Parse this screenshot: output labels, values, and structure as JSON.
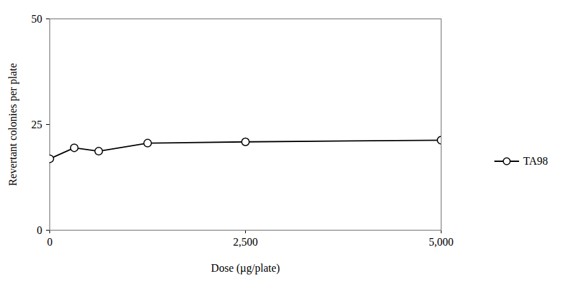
{
  "chart_data": {
    "type": "line",
    "xlabel": "Dose (µg/plate)",
    "ylabel": "Revertant colonies per plate",
    "x": [
      0,
      312.5,
      625,
      1250,
      2500,
      5000
    ],
    "series": [
      {
        "name": "TA98",
        "color": "#000000",
        "marker": "circle",
        "line_style": "solid",
        "values": [
          16.9,
          19.5,
          18.7,
          20.6,
          20.9,
          21.3
        ]
      }
    ],
    "xlim": [
      0,
      5000
    ],
    "xticks": [
      0,
      {
        "value": 2500,
        "label": "2,500"
      },
      {
        "value": 5000,
        "label": "5,000"
      }
    ],
    "ylim": [
      0,
      50
    ],
    "yticks": [
      0,
      25,
      50
    ],
    "grid": false,
    "legend": "right"
  }
}
